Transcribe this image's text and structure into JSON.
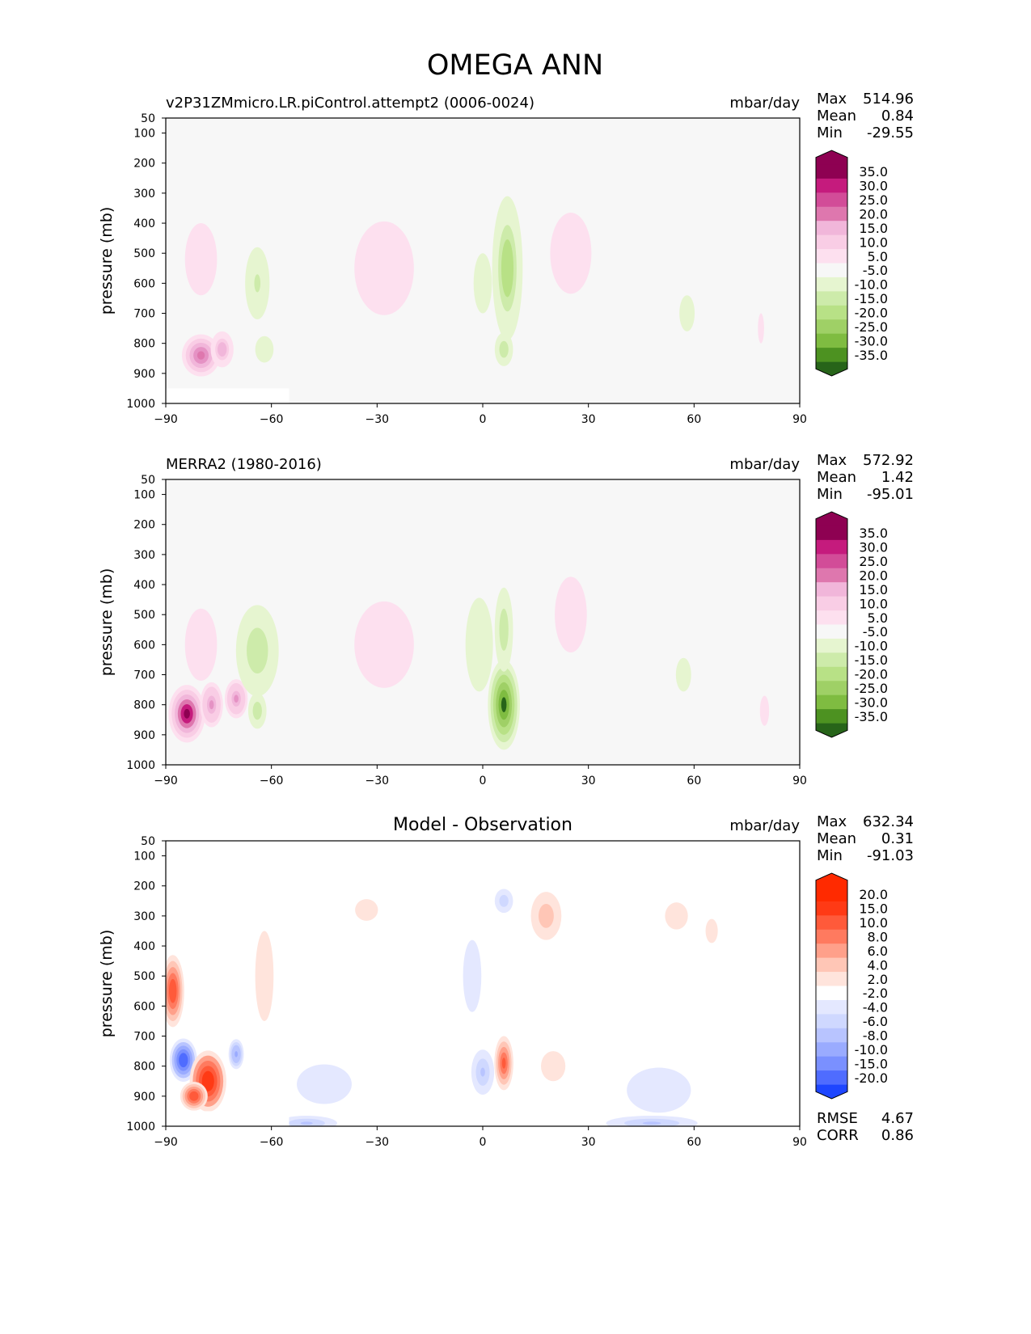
{
  "page_title": "OMEGA ANN",
  "chart_data": [
    {
      "type": "heatmap",
      "subtitle_left": "v2P31ZMmicro.LR.piControl.attempt2 (0006-0024)",
      "units": "mbar/day",
      "stats": [
        {
          "label": "Max",
          "value": "514.96"
        },
        {
          "label": "Mean",
          "value": "0.84"
        },
        {
          "label": "Min",
          "value": "-29.55"
        }
      ],
      "ylabel": "pressure (mb)",
      "xlim": [
        -90,
        90
      ],
      "ylim": [
        1000,
        50
      ],
      "x_ticks": [
        "−90",
        "−60",
        "−30",
        "0",
        "30",
        "60",
        "90"
      ],
      "y_ticks": [
        "50",
        "100",
        "200",
        "300",
        "400",
        "500",
        "600",
        "700",
        "800",
        "900",
        "1000"
      ],
      "colorbar_labels": [
        "35.0",
        "30.0",
        "25.0",
        "20.0",
        "15.0",
        "10.0",
        "5.0",
        "-5.0",
        "-10.0",
        "-15.0",
        "-20.0",
        "-25.0",
        "-30.0",
        "-35.0"
      ],
      "blobs": [
        {
          "lat": -80,
          "p": 520,
          "wlat": 7,
          "hp": 400,
          "v": 8
        },
        {
          "lat": -80,
          "p": 840,
          "wlat": 5,
          "hp": 140,
          "v": 28
        },
        {
          "lat": -74,
          "p": 820,
          "wlat": 3,
          "hp": 120,
          "v": 18
        },
        {
          "lat": -64,
          "p": 600,
          "wlat": 4,
          "hp": 300,
          "v": -11
        },
        {
          "lat": -62,
          "p": 820,
          "wlat": 6,
          "hp": 220,
          "v": -6
        },
        {
          "lat": -57,
          "p": 600,
          "wlat": 4,
          "hp": 350,
          "v": -4
        },
        {
          "lat": -28,
          "p": 550,
          "wlat": 13,
          "hp": 520,
          "v": 8
        },
        {
          "lat": 0,
          "p": 600,
          "wlat": 6,
          "hp": 500,
          "v": -7
        },
        {
          "lat": 7,
          "p": 550,
          "wlat": 4,
          "hp": 480,
          "v": -18
        },
        {
          "lat": 6,
          "p": 820,
          "wlat": 3,
          "hp": 140,
          "v": -14
        },
        {
          "lat": 25,
          "p": 500,
          "wlat": 9,
          "hp": 450,
          "v": 9
        },
        {
          "lat": 58,
          "p": 700,
          "wlat": 5,
          "hp": 300,
          "v": -6
        },
        {
          "lat": 79,
          "p": 750,
          "wlat": 2,
          "hp": 250,
          "v": 6
        }
      ]
    },
    {
      "type": "heatmap",
      "subtitle_left": "MERRA2 (1980-2016)",
      "units": "mbar/day",
      "stats": [
        {
          "label": "Max",
          "value": "572.92"
        },
        {
          "label": "Mean",
          "value": "1.42"
        },
        {
          "label": "Min",
          "value": "-95.01"
        }
      ],
      "ylabel": "pressure (mb)",
      "xlim": [
        -90,
        90
      ],
      "ylim": [
        1000,
        50
      ],
      "x_ticks": [
        "−90",
        "−60",
        "−30",
        "0",
        "30",
        "60",
        "90"
      ],
      "y_ticks": [
        "50",
        "100",
        "200",
        "300",
        "400",
        "500",
        "600",
        "700",
        "800",
        "900",
        "1000"
      ],
      "colorbar_labels": [
        "35.0",
        "30.0",
        "25.0",
        "20.0",
        "15.0",
        "10.0",
        "5.0",
        "-5.0",
        "-10.0",
        "-15.0",
        "-20.0",
        "-25.0",
        "-30.0",
        "-35.0"
      ],
      "blobs": [
        {
          "lat": -80,
          "p": 600,
          "wlat": 7,
          "hp": 400,
          "v": 9
        },
        {
          "lat": -84,
          "p": 830,
          "wlat": 4,
          "hp": 160,
          "v": 38
        },
        {
          "lat": -77,
          "p": 800,
          "wlat": 3,
          "hp": 150,
          "v": 20
        },
        {
          "lat": -70,
          "p": 780,
          "wlat": 3,
          "hp": 130,
          "v": 20
        },
        {
          "lat": -64,
          "p": 620,
          "wlat": 7,
          "hp": 380,
          "v": -13
        },
        {
          "lat": -64,
          "p": 820,
          "wlat": 3,
          "hp": 150,
          "v": -14
        },
        {
          "lat": -28,
          "p": 600,
          "wlat": 13,
          "hp": 480,
          "v": 9
        },
        {
          "lat": -1,
          "p": 600,
          "wlat": 6,
          "hp": 520,
          "v": -9
        },
        {
          "lat": 6,
          "p": 800,
          "wlat": 3.5,
          "hp": 250,
          "v": -35
        },
        {
          "lat": 6,
          "p": 550,
          "wlat": 3,
          "hp": 350,
          "v": -12
        },
        {
          "lat": 25,
          "p": 500,
          "wlat": 7,
          "hp": 420,
          "v": 8
        },
        {
          "lat": 57,
          "p": 700,
          "wlat": 5,
          "hp": 280,
          "v": -7
        },
        {
          "lat": 80,
          "p": 820,
          "wlat": 3,
          "hp": 250,
          "v": 6
        }
      ]
    },
    {
      "type": "heatmap",
      "title": "Model - Observation",
      "units": "mbar/day",
      "stats": [
        {
          "label": "Max",
          "value": "632.34"
        },
        {
          "label": "Mean",
          "value": "0.31"
        },
        {
          "label": "Min",
          "value": "-91.03"
        }
      ],
      "extra_stats": [
        {
          "label": "RMSE",
          "value": "4.67"
        },
        {
          "label": "CORR",
          "value": "0.86"
        }
      ],
      "ylabel": "pressure (mb)",
      "xlim": [
        -90,
        90
      ],
      "ylim": [
        1000,
        50
      ],
      "x_ticks": [
        "−90",
        "−60",
        "−30",
        "0",
        "30",
        "60",
        "90"
      ],
      "y_ticks": [
        "50",
        "100",
        "200",
        "300",
        "400",
        "500",
        "600",
        "700",
        "800",
        "900",
        "1000"
      ],
      "colorbar_labels": [
        "20.0",
        "15.0",
        "10.0",
        "8.0",
        "6.0",
        "4.0",
        "2.0",
        "-2.0",
        "-4.0",
        "-6.0",
        "-8.0",
        "-10.0",
        "-15.0",
        "-20.0"
      ],
      "blobs": [
        {
          "lat": -88,
          "p": 550,
          "wlat": 2.5,
          "hp": 200,
          "v": 12
        },
        {
          "lat": -85,
          "p": 780,
          "wlat": 3,
          "hp": 120,
          "v": -18
        },
        {
          "lat": -78,
          "p": 850,
          "wlat": 4,
          "hp": 170,
          "v": 18
        },
        {
          "lat": -82,
          "p": 900,
          "wlat": 3,
          "hp": 80,
          "v": 14
        },
        {
          "lat": -70,
          "p": 760,
          "wlat": 2,
          "hp": 100,
          "v": -9
        },
        {
          "lat": -62,
          "p": 500,
          "wlat": 4,
          "hp": 500,
          "v": 3
        },
        {
          "lat": -45,
          "p": 860,
          "wlat": 12,
          "hp": 220,
          "v": -3
        },
        {
          "lat": -50,
          "p": 990,
          "wlat": 8,
          "hp": 50,
          "v": -7
        },
        {
          "lat": -33,
          "p": 280,
          "wlat": 5,
          "hp": 120,
          "v": 3
        },
        {
          "lat": 0,
          "p": 820,
          "wlat": 3,
          "hp": 150,
          "v": -7
        },
        {
          "lat": 6,
          "p": 250,
          "wlat": 3,
          "hp": 100,
          "v": -5
        },
        {
          "lat": -3,
          "p": 500,
          "wlat": 6,
          "hp": 600,
          "v": -2.6
        },
        {
          "lat": 6,
          "p": 790,
          "wlat": 2.5,
          "hp": 180,
          "v": 10
        },
        {
          "lat": 18,
          "p": 300,
          "wlat": 5,
          "hp": 200,
          "v": 5
        },
        {
          "lat": 20,
          "p": 800,
          "wlat": 8,
          "hp": 250,
          "v": 2.6
        },
        {
          "lat": 50,
          "p": 880,
          "wlat": 14,
          "hp": 250,
          "v": -3
        },
        {
          "lat": 48,
          "p": 990,
          "wlat": 12,
          "hp": 50,
          "v": -6
        },
        {
          "lat": 55,
          "p": 300,
          "wlat": 5,
          "hp": 150,
          "v": 3
        },
        {
          "lat": 65,
          "p": 350,
          "wlat": 4,
          "hp": 200,
          "v": 2.6
        }
      ]
    }
  ]
}
